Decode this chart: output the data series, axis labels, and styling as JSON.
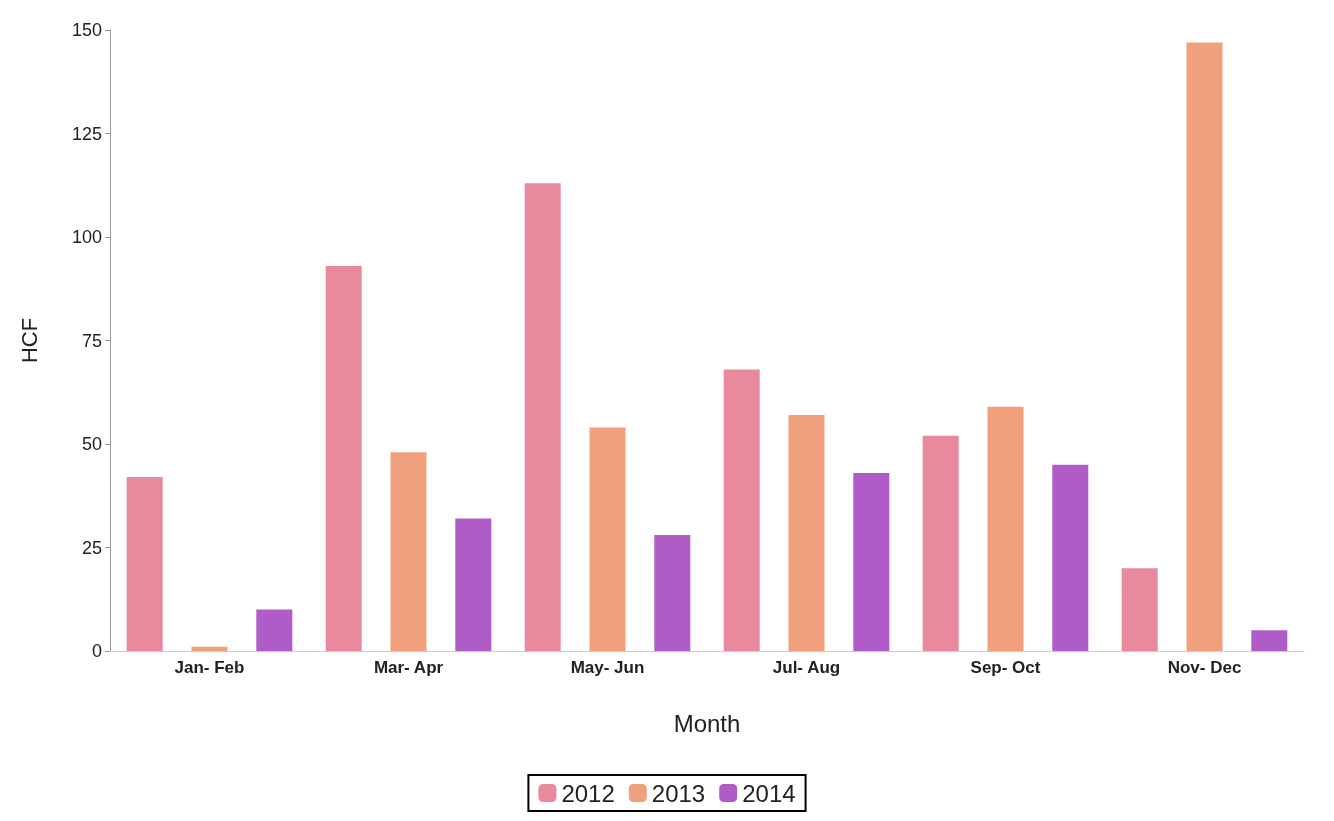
{
  "chart_data": {
    "type": "bar",
    "xlabel": "Month",
    "ylabel": "HCF",
    "categories": [
      "Jan- Feb",
      "Mar- Apr",
      "May- Jun",
      "Jul- Aug",
      "Sep- Oct",
      "Nov- Dec"
    ],
    "series": [
      {
        "name": "2012",
        "color": "#e8899e",
        "values": [
          42,
          93,
          113,
          68,
          52,
          20
        ]
      },
      {
        "name": "2013",
        "color": "#f0a07c",
        "values": [
          1,
          48,
          54,
          57,
          59,
          147
        ]
      },
      {
        "name": "2014",
        "color": "#b05cc8",
        "values": [
          10,
          32,
          28,
          43,
          45,
          5
        ]
      }
    ],
    "ylim": [
      0,
      150
    ],
    "yticks": [
      0,
      25,
      50,
      75,
      100,
      125,
      150
    ],
    "grid": false,
    "legend": "bottom"
  }
}
